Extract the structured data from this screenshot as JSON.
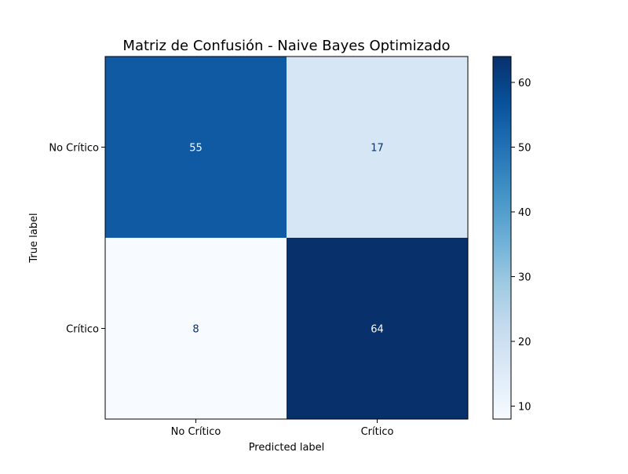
{
  "chart_data": {
    "type": "heatmap",
    "title": "Matriz de Confusión - Naive Bayes Optimizado",
    "xlabel": "Predicted label",
    "ylabel": "True label",
    "x_categories": [
      "No Crítico",
      "Crítico"
    ],
    "y_categories": [
      "No Crítico",
      "Crítico"
    ],
    "values": [
      [
        55,
        17
      ],
      [
        8,
        64
      ]
    ],
    "colormap": "Blues",
    "colorbar": {
      "range": [
        8,
        64
      ],
      "ticks": [
        10,
        20,
        30,
        40,
        50,
        60
      ],
      "tick_labels": [
        "10",
        "20",
        "30",
        "40",
        "50",
        "60"
      ]
    }
  }
}
